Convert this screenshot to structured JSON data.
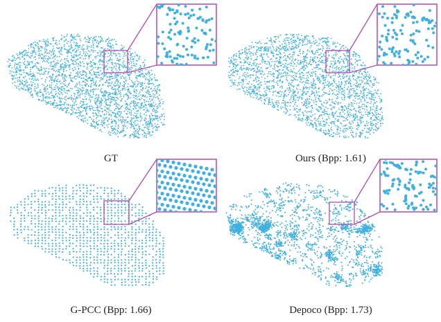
{
  "panels": [
    {
      "caption": "GT"
    },
    {
      "caption": "Ours (Bpp: 1.61)"
    },
    {
      "caption": "G-PCC (Bpp: 1.66)"
    },
    {
      "caption": "Depoco (Bpp: 1.73)"
    }
  ]
}
